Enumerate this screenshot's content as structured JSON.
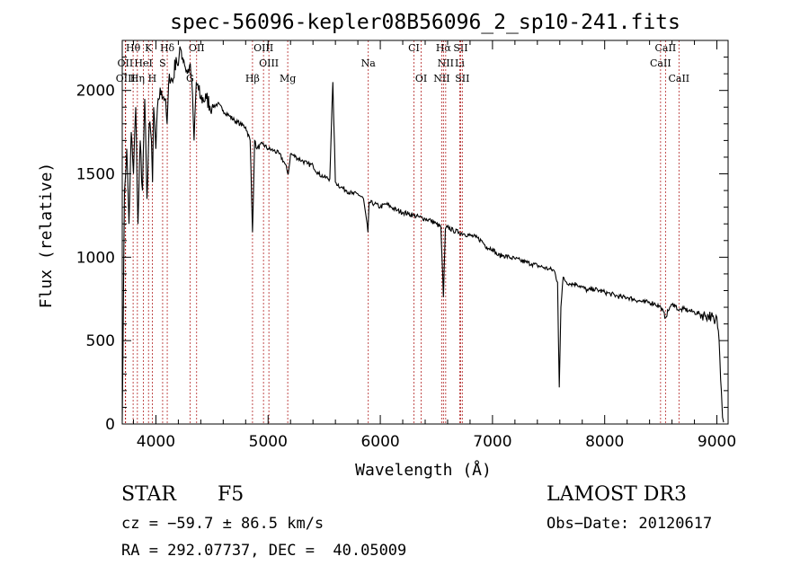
{
  "chart_data": {
    "type": "line",
    "title": "spec-56096-kepler08B56096_2_sp10-241.fits",
    "xlabel": "Wavelength (Å)",
    "ylabel": "Flux (relative)",
    "xlim": [
      3700,
      9100
    ],
    "ylim": [
      0,
      2300
    ],
    "xticks": [
      4000,
      5000,
      6000,
      7000,
      8000,
      9000
    ],
    "yticks": [
      0,
      500,
      1000,
      1500,
      2000
    ],
    "series": [
      {
        "name": "flux",
        "x": [
          3700,
          3720,
          3740,
          3760,
          3780,
          3800,
          3820,
          3840,
          3860,
          3880,
          3900,
          3920,
          3940,
          3960,
          3970,
          3980,
          4000,
          4020,
          4050,
          4080,
          4100,
          4120,
          4150,
          4180,
          4200,
          4220,
          4250,
          4280,
          4300,
          4320,
          4340,
          4360,
          4380,
          4400,
          4450,
          4500,
          4550,
          4600,
          4650,
          4700,
          4750,
          4800,
          4840,
          4861,
          4880,
          4900,
          4950,
          5000,
          5050,
          5100,
          5150,
          5180,
          5200,
          5250,
          5300,
          5350,
          5400,
          5450,
          5500,
          5550,
          5577,
          5600,
          5650,
          5700,
          5750,
          5800,
          5850,
          5890,
          5900,
          5950,
          6000,
          6050,
          6100,
          6150,
          6200,
          6250,
          6300,
          6350,
          6400,
          6450,
          6500,
          6540,
          6563,
          6580,
          6600,
          6650,
          6700,
          6750,
          6800,
          6850,
          6900,
          6950,
          7000,
          7050,
          7100,
          7150,
          7200,
          7250,
          7300,
          7350,
          7400,
          7450,
          7500,
          7550,
          7580,
          7595,
          7610,
          7630,
          7660,
          7700,
          7750,
          7800,
          7850,
          7900,
          7950,
          8000,
          8050,
          8100,
          8150,
          8200,
          8250,
          8300,
          8350,
          8400,
          8450,
          8500,
          8542,
          8580,
          8620,
          8662,
          8700,
          8750,
          8800,
          8850,
          8900,
          8950,
          8980,
          9000,
          9020,
          9040,
          9050,
          9060
        ],
        "values": [
          20,
          1400,
          1650,
          1200,
          1750,
          1500,
          1900,
          1200,
          1700,
          1400,
          1950,
          1350,
          1800,
          1700,
          1450,
          1900,
          1650,
          1950,
          2000,
          1950,
          1800,
          2100,
          2050,
          2200,
          2150,
          2250,
          2180,
          2100,
          2150,
          2050,
          1700,
          2050,
          2000,
          1950,
          1950,
          1900,
          1920,
          1880,
          1850,
          1820,
          1800,
          1780,
          1700,
          1150,
          1700,
          1650,
          1680,
          1650,
          1640,
          1620,
          1560,
          1500,
          1620,
          1600,
          1580,
          1560,
          1550,
          1500,
          1480,
          1470,
          2050,
          1450,
          1420,
          1400,
          1380,
          1380,
          1350,
          1150,
          1330,
          1320,
          1300,
          1320,
          1300,
          1280,
          1270,
          1260,
          1250,
          1240,
          1230,
          1220,
          1200,
          1180,
          760,
          1170,
          1180,
          1160,
          1150,
          1140,
          1130,
          1120,
          1100,
          1060,
          1050,
          1010,
          1010,
          1000,
          990,
          980,
          970,
          960,
          950,
          940,
          930,
          920,
          850,
          220,
          700,
          880,
          850,
          840,
          840,
          820,
          800,
          810,
          800,
          790,
          780,
          770,
          760,
          760,
          750,
          740,
          730,
          730,
          720,
          700,
          640,
          700,
          720,
          680,
          690,
          680,
          670,
          660,
          650,
          650,
          600,
          640,
          500,
          200,
          40,
          10
        ]
      }
    ],
    "lines": [
      {
        "label": "Hθ",
        "wl": 3797,
        "row": 1
      },
      {
        "label": "K",
        "wl": 3934,
        "row": 1
      },
      {
        "label": "Hδ",
        "wl": 4101,
        "row": 1
      },
      {
        "label": "OII",
        "wl": 4363,
        "row": 1
      },
      {
        "label": "OIII",
        "wl": 4959,
        "row": 1
      },
      {
        "label": "CI",
        "wl": 6300,
        "row": 1
      },
      {
        "label": "Hα",
        "wl": 6563,
        "row": 1
      },
      {
        "label": "SII",
        "wl": 6716,
        "row": 1
      },
      {
        "label": "CaII",
        "wl": 8542,
        "row": 1
      },
      {
        "label": "OII",
        "wl": 3727,
        "row": 2
      },
      {
        "label": "HeI",
        "wl": 3889,
        "row": 2
      },
      {
        "label": "S",
        "wl": 4060,
        "row": 2
      },
      {
        "label": "OIII",
        "wl": 5007,
        "row": 2
      },
      {
        "label": "Na",
        "wl": 5893,
        "row": 2
      },
      {
        "label": "NII",
        "wl": 6583,
        "row": 2
      },
      {
        "label": "Li",
        "wl": 6708,
        "row": 2
      },
      {
        "label": "CaII",
        "wl": 8498,
        "row": 2
      },
      {
        "label": "OIII",
        "wl": 3730,
        "row": 3
      },
      {
        "label": "Hη",
        "wl": 3835,
        "row": 3
      },
      {
        "label": "H",
        "wl": 3968,
        "row": 3
      },
      {
        "label": "G",
        "wl": 4304,
        "row": 3
      },
      {
        "label": "Hβ",
        "wl": 4861,
        "row": 3
      },
      {
        "label": "Mg",
        "wl": 5175,
        "row": 3
      },
      {
        "label": "OI",
        "wl": 6364,
        "row": 3
      },
      {
        "label": "NII",
        "wl": 6548,
        "row": 3
      },
      {
        "label": "SII",
        "wl": 6731,
        "row": 3
      },
      {
        "label": "CaII",
        "wl": 8662,
        "row": 3
      }
    ]
  },
  "info": {
    "class": "STAR",
    "subclass": "F5",
    "survey": "LAMOST DR3",
    "cz": "cz = −59.7 ± 86.5 km/s",
    "obsdate": "Obs−Date: 20120617",
    "radec": "RA = 292.07737, DEC =  40.05009"
  }
}
